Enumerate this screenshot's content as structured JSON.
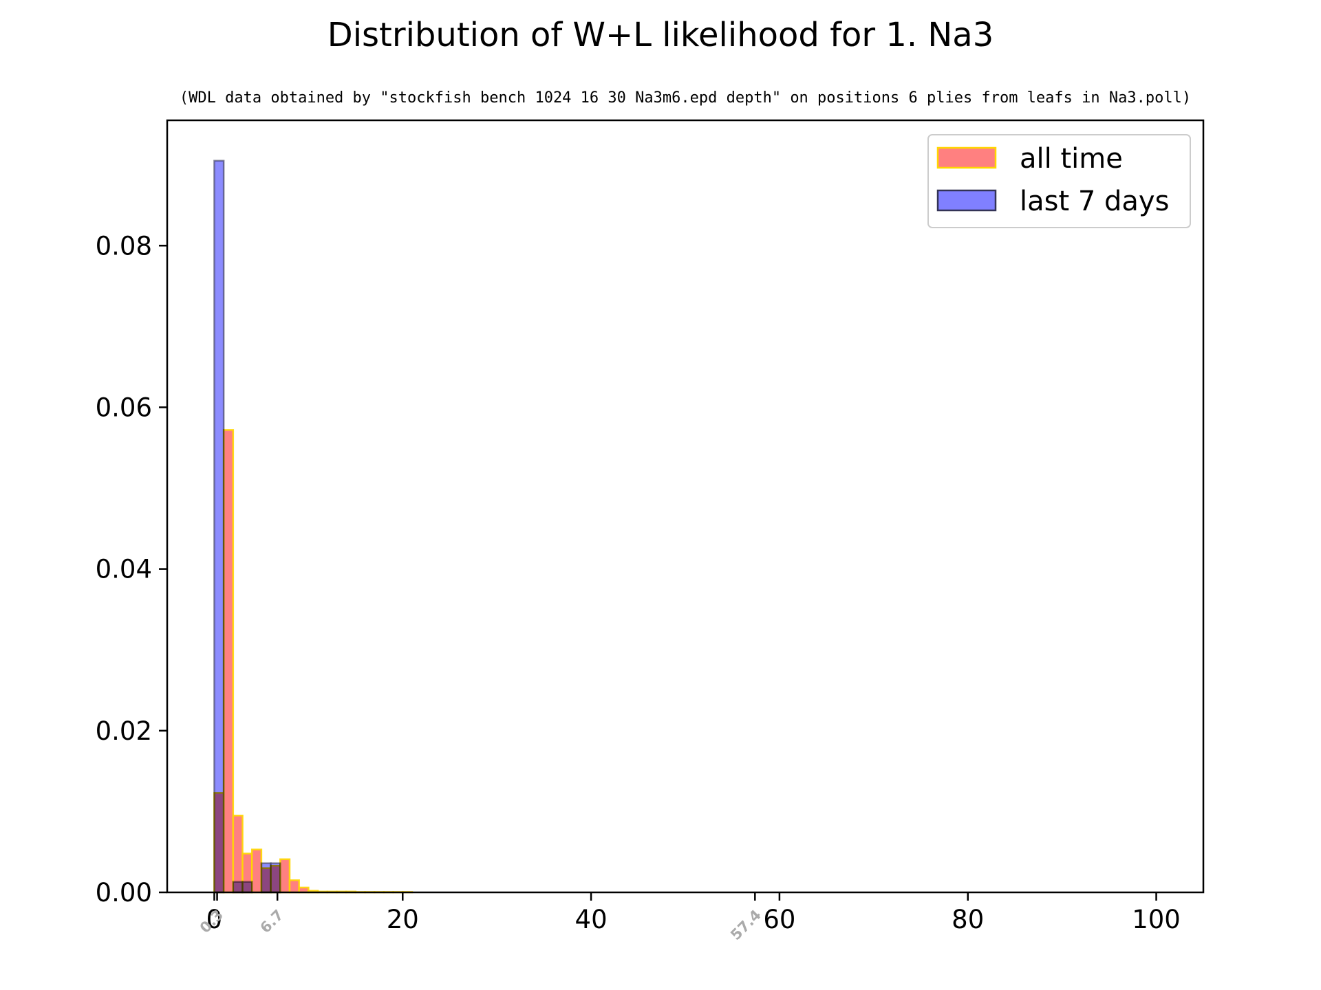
{
  "chart_data": {
    "type": "bar",
    "title": "Distribution of W+L likelihood for 1. Na3",
    "subtitle": "(WDL data obtained by \"stockfish bench 1024 16 30 Na3m6.epd depth\" on positions 6 plies from leafs in Na3.poll)",
    "xlabel": "",
    "ylabel": "",
    "xlim": [
      -5,
      105
    ],
    "ylim": [
      0,
      0.0955
    ],
    "x_ticks": [
      0,
      20,
      40,
      60,
      80,
      100
    ],
    "x_tick_labels": [
      "0",
      "20",
      "40",
      "60",
      "80",
      "100"
    ],
    "y_ticks": [
      0.0,
      0.02,
      0.04,
      0.06,
      0.08
    ],
    "y_tick_labels": [
      "0.00",
      "0.02",
      "0.04",
      "0.06",
      "0.08"
    ],
    "grid": false,
    "legend_position": "top-right",
    "bin_width": 1,
    "series": [
      {
        "name": "all time",
        "color": "#ff8080",
        "edge_color": "#ffd700",
        "bins_start": [
          0,
          1,
          2,
          3,
          4,
          5,
          6,
          7,
          8,
          9,
          10,
          11,
          12,
          13,
          14,
          15,
          16,
          17,
          18,
          19,
          20
        ],
        "values": [
          0.0123,
          0.0572,
          0.0095,
          0.0048,
          0.0053,
          0.003,
          0.0033,
          0.0041,
          0.0015,
          0.0006,
          0.0002,
          0.0001,
          0.0001,
          0.0001,
          0.0001,
          5e-05,
          5e-05,
          5e-05,
          5e-05,
          5e-05,
          5e-05
        ]
      },
      {
        "name": "last 7 days",
        "color": "#8080ff",
        "edge_color": "#333355",
        "bins_start": [
          0,
          1,
          2,
          3,
          4,
          5,
          6
        ],
        "values": [
          0.0905,
          0.0,
          0.0013,
          0.0013,
          0.0,
          0.0036,
          0.0036
        ]
      }
    ],
    "markers": [
      {
        "x": 0.3,
        "label": "0.3"
      },
      {
        "x": 6.7,
        "label": "6.7"
      },
      {
        "x": 57.4,
        "label": "57.4"
      }
    ]
  }
}
